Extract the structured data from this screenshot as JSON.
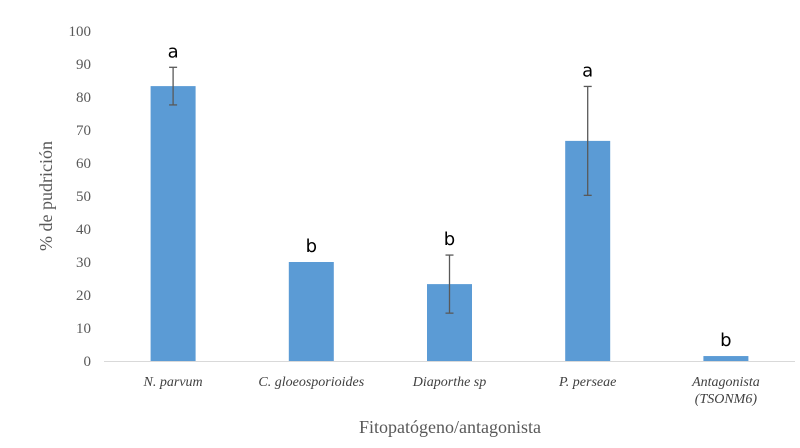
{
  "chart_data": {
    "type": "bar",
    "categories": [
      [
        "N. parvum"
      ],
      [
        "C. gloeosporioides"
      ],
      [
        "Diaporthe sp"
      ],
      [
        "P. perseae"
      ],
      [
        "Antagonista",
        "(TSONM6)"
      ]
    ],
    "values": [
      83.3,
      30.0,
      23.3,
      66.7,
      1.5
    ],
    "error": [
      5.7,
      0,
      8.8,
      16.5,
      0
    ],
    "significance": [
      "a",
      "b",
      "b",
      "a",
      "b"
    ],
    "title": "",
    "xlabel": "Fitopatógeno/antagonista",
    "ylabel": "% de pudrición",
    "ylim": [
      0,
      100
    ],
    "yticks": [
      0,
      10,
      20,
      30,
      40,
      50,
      60,
      70,
      80,
      90,
      100
    ],
    "grid": false,
    "legend": "none",
    "colors": {
      "bar": "#5b9bd5",
      "error_bar": "#595959",
      "axis": "#d9d9d9"
    }
  }
}
